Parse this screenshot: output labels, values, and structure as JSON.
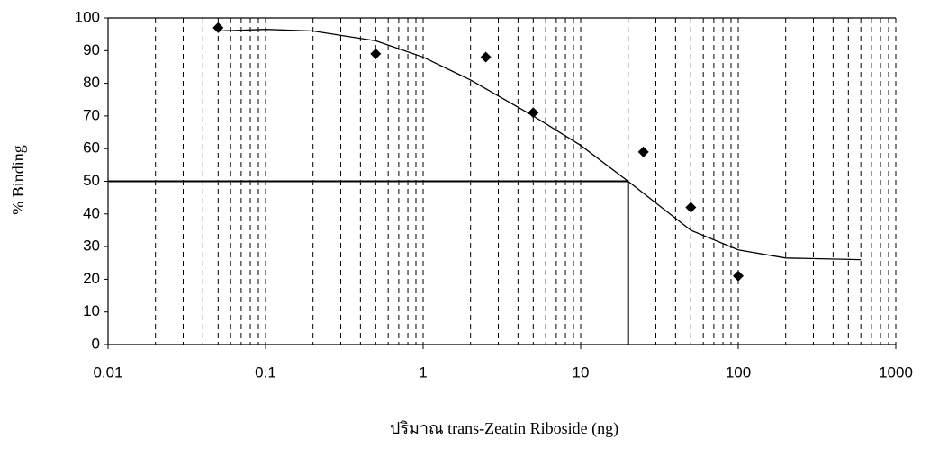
{
  "chart_data": {
    "type": "scatter",
    "xlabel": "ปริมาณ trans-Zeatin Riboside (ng)",
    "ylabel": "% Binding",
    "xscale": "log",
    "xlim": [
      0.01,
      1000
    ],
    "xticks": [
      0.01,
      0.1,
      1,
      10,
      100,
      1000
    ],
    "ylim": [
      0,
      100
    ],
    "yticks": [
      0,
      10,
      20,
      30,
      40,
      50,
      60,
      70,
      80,
      90,
      100
    ],
    "minor_grid": true,
    "series": [
      {
        "type": "scatter",
        "color": "#000000",
        "x": [
          0.05,
          0.5,
          2.5,
          5,
          25,
          50,
          100
        ],
        "values": [
          97,
          89,
          88,
          71,
          59,
          42,
          21
        ]
      },
      {
        "type": "line",
        "color": "#000000",
        "x": [
          0.05,
          0.1,
          0.2,
          0.5,
          1,
          2,
          5,
          10,
          20,
          50,
          100,
          200,
          600
        ],
        "values": [
          96,
          96.5,
          96,
          93,
          88,
          81,
          70,
          61,
          50,
          35,
          29,
          26.5,
          26
        ]
      }
    ],
    "reference": {
      "x": 20,
      "y": 50
    }
  }
}
